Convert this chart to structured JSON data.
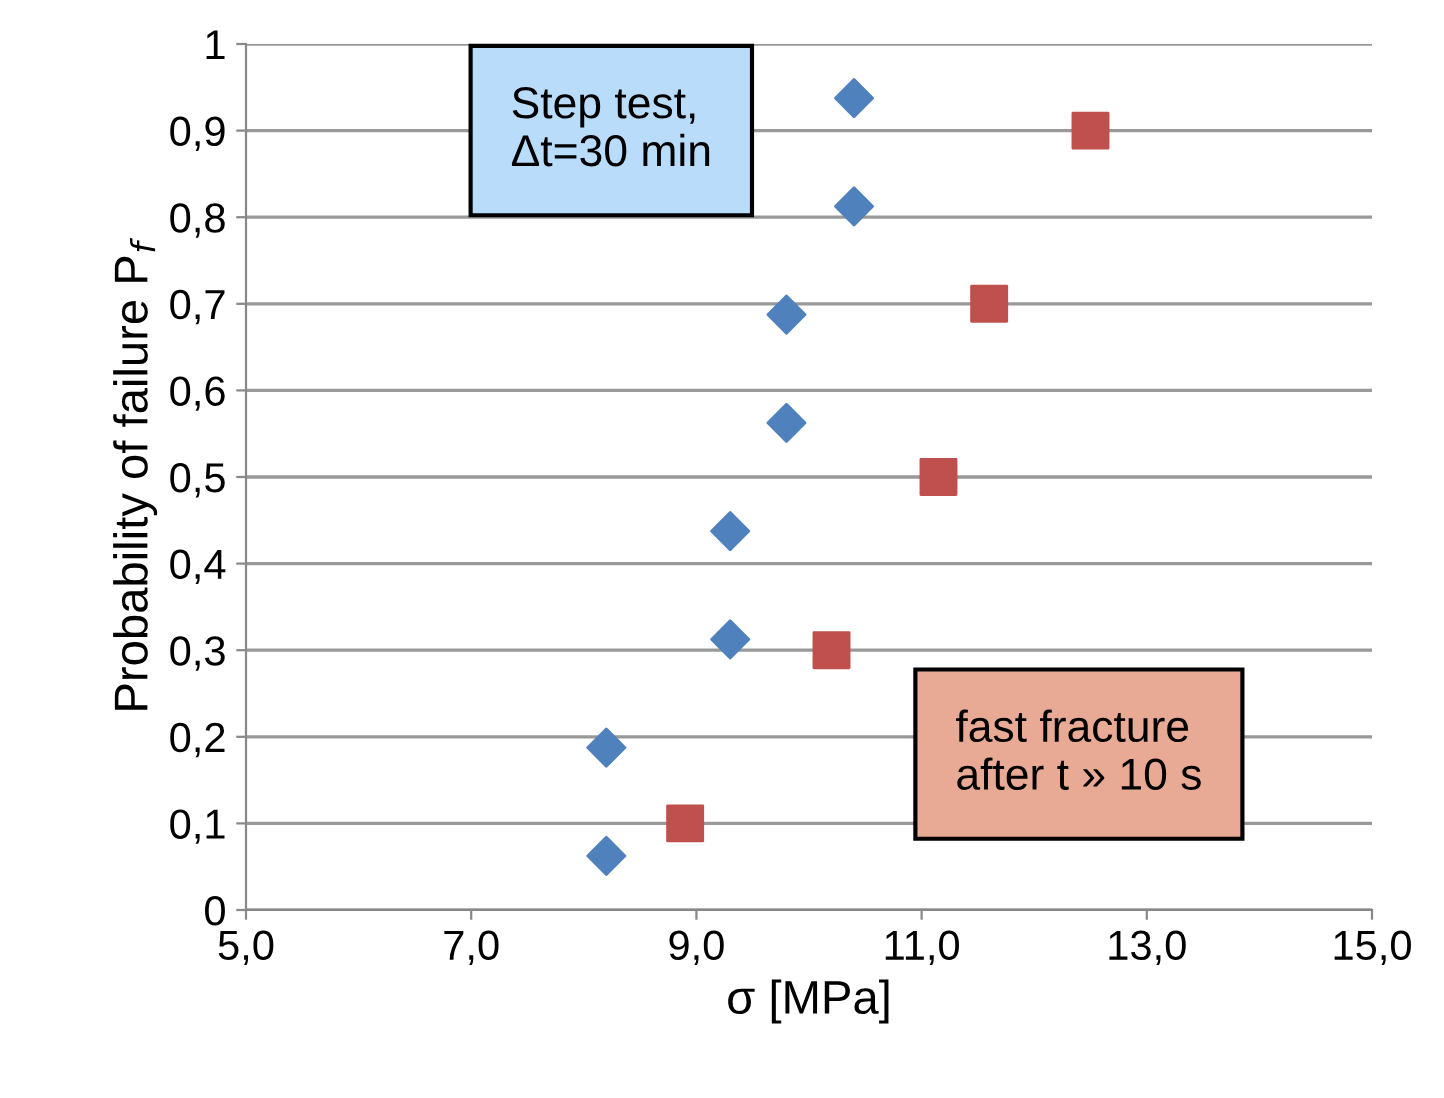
{
  "chart_data": {
    "type": "scatter",
    "xlabel": "σ [MPa]",
    "ylabel": "Probability of failure P$_{f}$",
    "xlim": [
      5,
      15
    ],
    "xticks": [
      {
        "value": 5,
        "label": "5,0"
      },
      {
        "value": 7,
        "label": "7,0"
      },
      {
        "value": 9,
        "label": "9,0"
      },
      {
        "value": 11,
        "label": "11,0"
      },
      {
        "value": 13,
        "label": "13,0"
      },
      {
        "value": 15,
        "label": "15,0"
      }
    ],
    "ylim": [
      0,
      1
    ],
    "yticks": [
      0,
      {
        "value": 0.1,
        "label": "0,1"
      },
      {
        "value": 0.2,
        "label": "0,2"
      },
      {
        "value": 0.3,
        "label": "0,3"
      },
      {
        "value": 0.4,
        "label": "0,4"
      },
      {
        "value": 0.5,
        "label": "0,5"
      },
      {
        "value": 0.6,
        "label": "0,6"
      },
      {
        "value": 0.7,
        "label": "0,7"
      },
      {
        "value": 0.8,
        "label": "0,8"
      },
      {
        "value": 0.9,
        "label": "0,9"
      },
      1
    ],
    "grid": "y",
    "legend": false,
    "series": [
      {
        "color": "#4f81bd",
        "marker": "diamond",
        "x": [
          8.2,
          8.2,
          9.3,
          9.3,
          9.8,
          9.8,
          10.4,
          10.4
        ],
        "values": [
          0.0625,
          0.1875,
          0.3125,
          0.4375,
          0.5625,
          0.6875,
          0.8125,
          0.9375
        ]
      },
      {
        "color": "#c0504d",
        "marker": "square",
        "x": [
          8.9,
          10.2,
          11.15,
          11.6,
          12.5
        ],
        "values": [
          0.1,
          0.3,
          0.5,
          0.7,
          0.9
        ]
      }
    ],
    "annotations": [
      "Step test,\nΔt=30 min",
      "fast fracture\nafter t » 10 s"
    ]
  }
}
